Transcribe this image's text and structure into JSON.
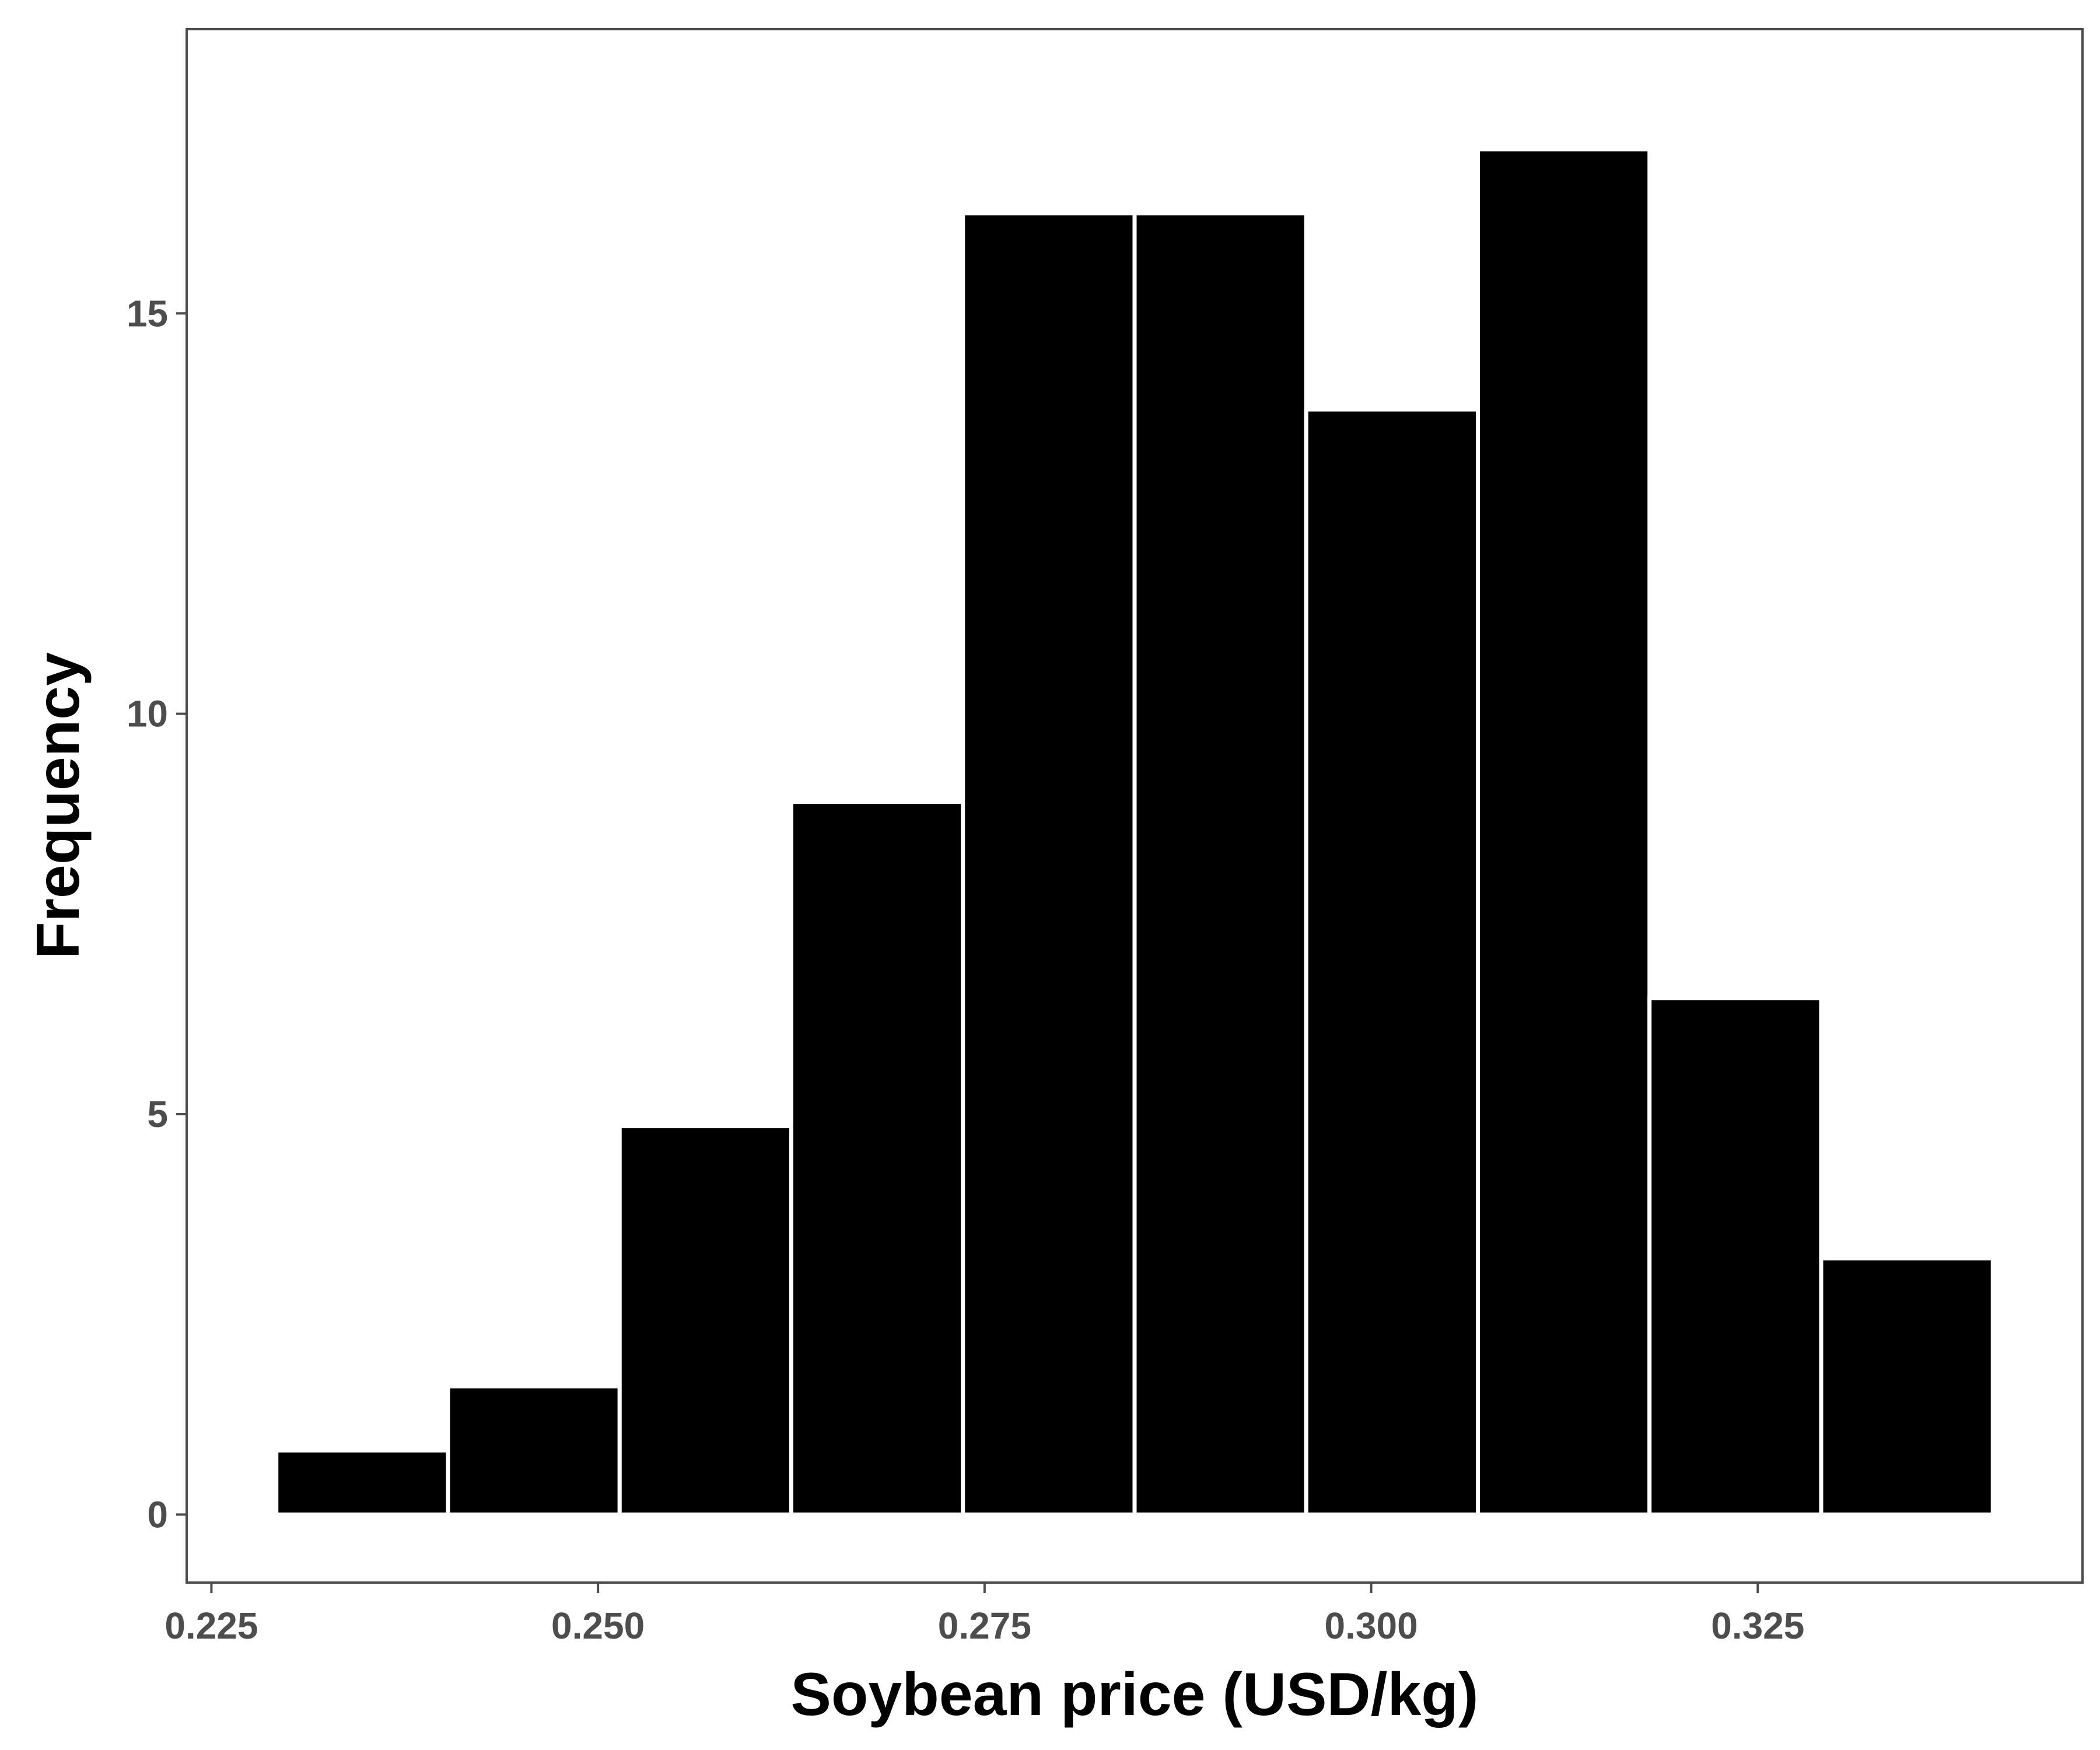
{
  "chart_data": {
    "type": "bar",
    "title": "",
    "xlabel": "Soybean price (USD/kg)",
    "ylabel": "Frequency",
    "bin_edges": [
      0.2292,
      0.2403,
      0.2514,
      0.2625,
      0.2736,
      0.2847,
      0.2958,
      0.3069,
      0.318,
      0.3291,
      0.3402
    ],
    "values": [
      0.8,
      1.6,
      4.85,
      8.9,
      16.25,
      16.25,
      13.8,
      17.05,
      6.45,
      3.2
    ],
    "xlim": [
      0.2234,
      0.346
    ],
    "ylim": [
      -0.85,
      18.55
    ],
    "xticks": [
      0.225,
      0.25,
      0.275,
      0.3,
      0.325
    ],
    "xtick_labels": [
      "0.225",
      "0.250",
      "0.275",
      "0.300",
      "0.325"
    ],
    "yticks": [
      0,
      5,
      10,
      15
    ],
    "ytick_labels": [
      "0",
      "5",
      "10",
      "15"
    ],
    "grid": false,
    "legend": "none",
    "colors": {
      "bar_fill": "#000000",
      "bar_outline": "#ffffff",
      "panel_border": "#4d4d4d",
      "tick_text": "#4d4d4d"
    }
  }
}
